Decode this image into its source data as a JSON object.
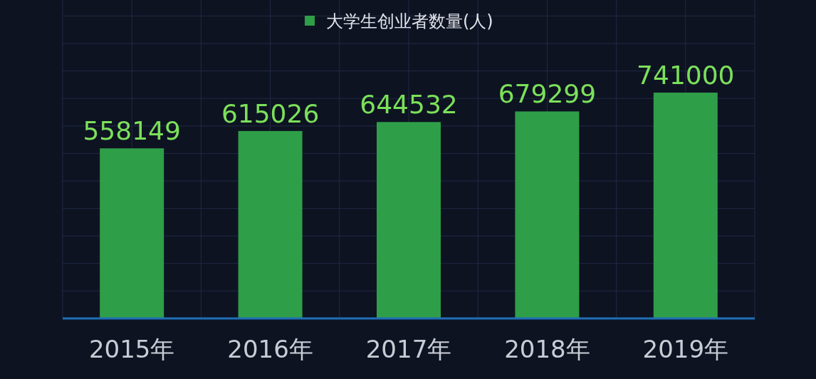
{
  "chart_data": {
    "type": "bar",
    "categories": [
      "2015年",
      "2016年",
      "2017年",
      "2018年",
      "2019年"
    ],
    "series": [
      {
        "name": "大学生创业者数量(人)",
        "color": "#2f9e48",
        "values": [
          558149,
          615026,
          644532,
          679299,
          741000
        ]
      }
    ],
    "ylim": [
      0,
      900000
    ],
    "tick_labels": "x",
    "data_labels": true,
    "grid": true,
    "legend": "top"
  }
}
